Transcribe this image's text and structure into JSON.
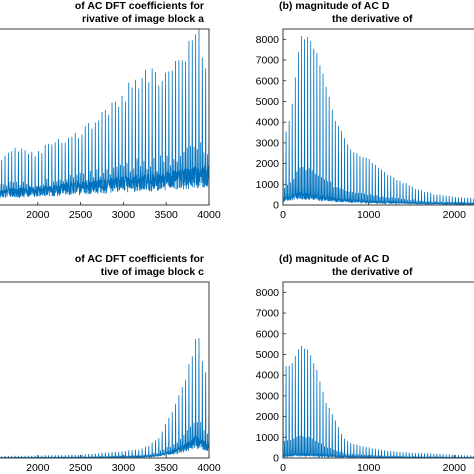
{
  "chart_data": [
    {
      "type": "line",
      "panel": "a",
      "title_lines": [
        "of AC DFT coefficients for",
        "rivative of image block a"
      ],
      "title_align": "right",
      "xlim": [
        1500,
        4000
      ],
      "x_ticks": [
        2000,
        2500,
        3000,
        3500,
        4000
      ],
      "y_ticks": [],
      "series_color": "#0072bd",
      "x": [
        1500,
        1800,
        2000,
        2200,
        2400,
        2600,
        2800,
        3000,
        3200,
        3400,
        3500,
        3600,
        3700,
        3800,
        3900,
        4000
      ],
      "envelope": [
        2100,
        2700,
        2500,
        2900,
        3300,
        3700,
        4300,
        5300,
        6100,
        6200,
        6100,
        6900,
        7100,
        8300,
        8300,
        5200
      ],
      "baseline": [
        550,
        600,
        650,
        700,
        800,
        850,
        900,
        1000,
        1050,
        1100,
        1150,
        1200,
        1250,
        1300,
        1350,
        1400
      ]
    },
    {
      "type": "line",
      "panel": "b",
      "title_lines": [
        "(b) magnitude of AC D",
        "the derivative of"
      ],
      "title_align": "left",
      "xlim": [
        0,
        2300
      ],
      "ylim": [
        0,
        8500
      ],
      "x_ticks": [
        0,
        1000,
        2000
      ],
      "y_ticks": [
        0,
        1000,
        2000,
        3000,
        4000,
        5000,
        6000,
        7000,
        8000
      ],
      "series_color": "#0072bd",
      "x": [
        0,
        100,
        200,
        300,
        400,
        500,
        600,
        700,
        800,
        900,
        1000,
        1200,
        1400,
        1600,
        1800,
        2000,
        2300
      ],
      "envelope": [
        2900,
        4600,
        8000,
        8100,
        7300,
        5800,
        4100,
        3400,
        2600,
        2400,
        2200,
        1500,
        1100,
        700,
        500,
        400,
        300
      ],
      "baseline": [
        250,
        350,
        450,
        400,
        350,
        300,
        250,
        200,
        180,
        160,
        140,
        120,
        100,
        80,
        70,
        60,
        50
      ]
    },
    {
      "type": "line",
      "panel": "c",
      "title_lines": [
        "of AC DFT coefficients for",
        "tive of image block c"
      ],
      "title_align": "right",
      "xlim": [
        1500,
        4000
      ],
      "x_ticks": [
        2000,
        2500,
        3000,
        3500,
        4000
      ],
      "y_ticks": [],
      "series_color": "#0072bd",
      "x": [
        1500,
        2000,
        2500,
        2800,
        3000,
        3200,
        3300,
        3400,
        3500,
        3600,
        3700,
        3800,
        3850,
        3900,
        4000
      ],
      "envelope": [
        80,
        120,
        150,
        250,
        330,
        420,
        600,
        900,
        1650,
        2500,
        3600,
        5000,
        5900,
        5400,
        3200
      ],
      "baseline": [
        10,
        15,
        20,
        30,
        40,
        60,
        80,
        120,
        200,
        300,
        450,
        650,
        800,
        700,
        500
      ]
    },
    {
      "type": "line",
      "panel": "d",
      "title_lines": [
        "(d) magnitude of AC D",
        "the derivative of"
      ],
      "title_align": "left",
      "xlim": [
        0,
        2300
      ],
      "ylim": [
        0,
        8500
      ],
      "x_ticks": [
        0,
        1000,
        2000
      ],
      "y_ticks": [
        0,
        1000,
        2000,
        3000,
        4000,
        5000,
        6000,
        7000,
        8000
      ],
      "series_color": "#0072bd",
      "x": [
        0,
        100,
        200,
        300,
        400,
        500,
        600,
        700,
        800,
        1000,
        1200,
        1500,
        1800,
        2000,
        2300
      ],
      "envelope": [
        4400,
        4500,
        5400,
        5200,
        4200,
        2700,
        1900,
        1000,
        700,
        500,
        350,
        250,
        200,
        150,
        100
      ],
      "baseline": [
        80,
        120,
        150,
        140,
        120,
        100,
        80,
        60,
        50,
        40,
        30,
        20,
        15,
        12,
        10
      ]
    }
  ]
}
